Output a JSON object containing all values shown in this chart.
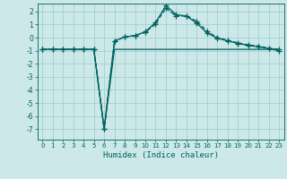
{
  "xlabel": "Humidex (Indice chaleur)",
  "x": [
    0,
    1,
    2,
    3,
    4,
    5,
    6,
    7,
    8,
    9,
    10,
    11,
    12,
    13,
    14,
    15,
    16,
    17,
    18,
    19,
    20,
    21,
    22,
    23
  ],
  "line1": [
    -0.9,
    -0.9,
    -0.9,
    -0.9,
    -0.9,
    -0.9,
    -7.0,
    -0.9,
    -0.9,
    -0.9,
    -0.9,
    -0.9,
    -0.9,
    -0.9,
    -0.9,
    -0.9,
    -0.9,
    -0.9,
    -0.9,
    -0.9,
    -0.9,
    -0.9,
    -0.9,
    -0.9
  ],
  "line2": [
    -0.9,
    -0.9,
    -0.9,
    -0.9,
    -0.9,
    -0.9,
    -7.0,
    -0.3,
    0.05,
    0.15,
    0.4,
    1.05,
    2.25,
    1.65,
    1.65,
    1.25,
    0.5,
    0.0,
    -0.2,
    -0.4,
    -0.55,
    -0.65,
    -0.8,
    -0.9
  ],
  "line3": [
    -0.9,
    -0.9,
    -0.9,
    -0.9,
    -0.9,
    -0.9,
    -7.0,
    -0.25,
    0.05,
    0.15,
    0.45,
    1.15,
    2.45,
    1.75,
    1.65,
    1.1,
    0.35,
    -0.05,
    -0.25,
    -0.45,
    -0.6,
    -0.7,
    -0.85,
    -1.0
  ],
  "bg_color": "#cce8e8",
  "line_color": "#006060",
  "grid_color": "#99cccc",
  "ylim": [
    -7.8,
    2.6
  ],
  "yticks": [
    -7,
    -6,
    -5,
    -4,
    -3,
    -2,
    -1,
    0,
    1,
    2
  ],
  "xticks": [
    0,
    1,
    2,
    3,
    4,
    5,
    6,
    7,
    8,
    9,
    10,
    11,
    12,
    13,
    14,
    15,
    16,
    17,
    18,
    19,
    20,
    21,
    22,
    23
  ]
}
